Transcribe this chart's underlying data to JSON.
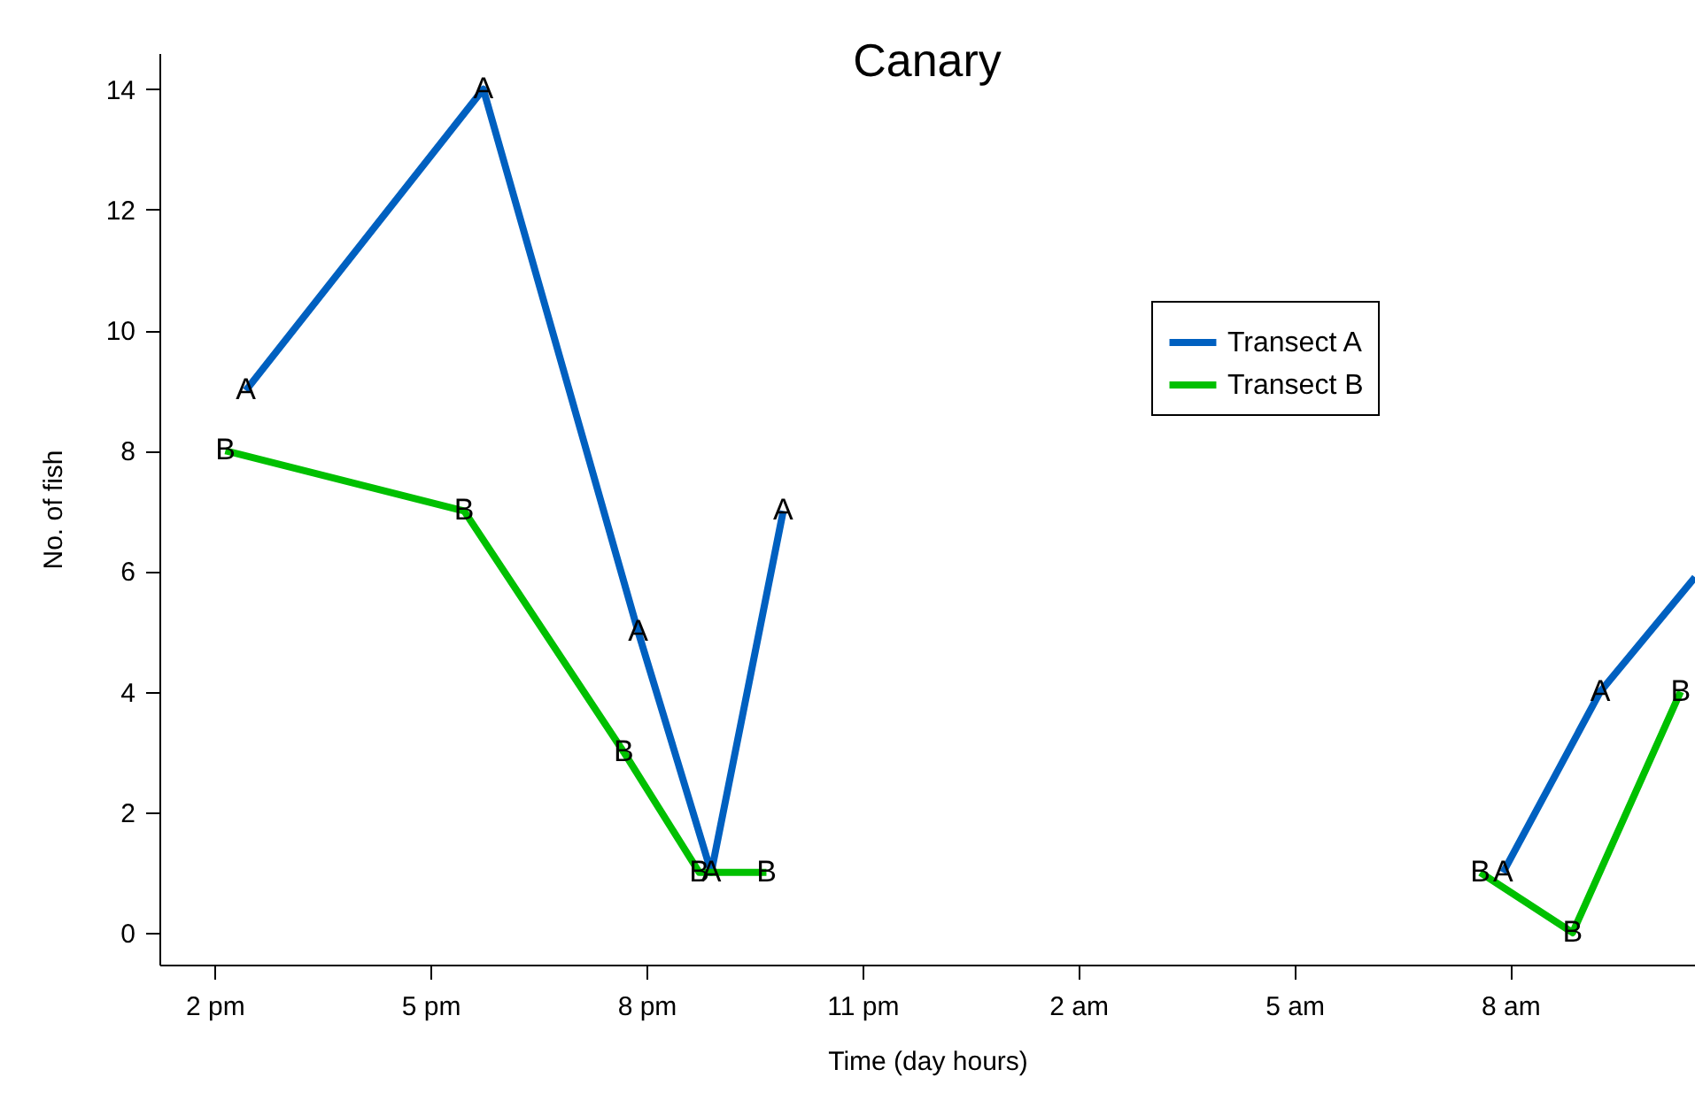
{
  "chart_data": {
    "type": "line",
    "title": "Canary",
    "xlabel": "Time (day hours)",
    "ylabel": "No. of fish",
    "xlim": [
      "--01-01T13:14",
      "--01-02T10:34"
    ],
    "xticks": [
      {
        "value": "--01-01T14:00",
        "label": "2 pm"
      },
      {
        "value": "--01-01T17:00",
        "label": "5 pm"
      },
      {
        "value": "--01-01T20:00",
        "label": "8 pm"
      },
      {
        "value": "--01-01T23:00",
        "label": "11 pm"
      },
      {
        "value": "--01-02T02:00",
        "label": "2 am"
      },
      {
        "value": "--01-02T05:00",
        "label": "5 am"
      },
      {
        "value": "--01-02T08:00",
        "label": "8 am"
      }
    ],
    "ylim": [
      -0.53,
      14.6
    ],
    "yticks": [
      0,
      2,
      4,
      6,
      8,
      10,
      12,
      14
    ],
    "grid": false,
    "legend": "top right",
    "line_style": "solid",
    "marker": "none",
    "series": [
      {
        "name": "Transect A",
        "color": "#0060c0",
        "x": [
          "--01-01T14:26",
          "--01-01T17:44",
          "--01-01T19:53",
          "--01-01T20:54",
          "--01-01T21:54",
          "--01-02T03:00",
          "--01-02T07:54",
          "--01-02T09:15",
          "--01-02T10:34"
        ],
        "values": [
          9,
          14,
          5,
          1,
          7,
          null,
          1,
          4,
          5.9
        ]
      },
      {
        "name": "Transect B",
        "color": "#00c000",
        "x": [
          "--01-01T14:09",
          "--01-01T17:28",
          "--01-01T19:41",
          "--01-01T20:44",
          "--01-01T21:40",
          "--01-02T03:00",
          "--01-02T07:35",
          "--01-02T08:52",
          "--01-02T10:22"
        ],
        "values": [
          8,
          7,
          3,
          1,
          1,
          null,
          1,
          0,
          4
        ]
      }
    ],
    "annotations": [
      {
        "text": "A",
        "x": "--01-01T14:26",
        "y": 9
      },
      {
        "text": "A",
        "x": "--01-01T17:44",
        "y": 14
      },
      {
        "text": "A",
        "x": "--01-01T19:53",
        "y": 5
      },
      {
        "text": "A",
        "x": "--01-01T20:54",
        "y": 1
      },
      {
        "text": "A",
        "x": "--01-01T21:54",
        "y": 7
      },
      {
        "text": "A",
        "x": "--01-02T07:54",
        "y": 1
      },
      {
        "text": "A",
        "x": "--01-02T09:15",
        "y": 4
      },
      {
        "text": "B",
        "x": "--01-01T14:09",
        "y": 8
      },
      {
        "text": "B",
        "x": "--01-01T17:28",
        "y": 7
      },
      {
        "text": "B",
        "x": "--01-01T19:41",
        "y": 3
      },
      {
        "text": "B",
        "x": "--01-01T20:44",
        "y": 1
      },
      {
        "text": "B",
        "x": "--01-01T21:40",
        "y": 1
      },
      {
        "text": "B",
        "x": "--01-02T07:35",
        "y": 1
      },
      {
        "text": "B",
        "x": "--01-02T08:52",
        "y": 0
      },
      {
        "text": "B",
        "x": "--01-02T10:22",
        "y": 4
      }
    ]
  }
}
